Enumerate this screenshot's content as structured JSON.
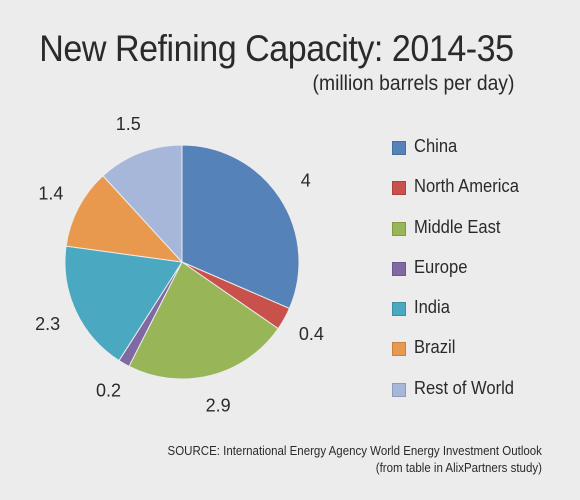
{
  "chart_data": {
    "type": "pie",
    "title": "New Refining Capacity: 2014-35",
    "subtitle": "(million barrels per day)",
    "slices": [
      {
        "label": "China",
        "value": 4,
        "value_label": "4",
        "color": "#5582b8"
      },
      {
        "label": "North America",
        "value": 0.4,
        "value_label": "0.4",
        "color": "#c9514c"
      },
      {
        "label": "Middle East",
        "value": 2.9,
        "value_label": "2.9",
        "color": "#98b558"
      },
      {
        "label": "Europe",
        "value": 0.2,
        "value_label": "0.2",
        "color": "#8068a2"
      },
      {
        "label": "India",
        "value": 2.3,
        "value_label": "2.3",
        "color": "#4aa8c1"
      },
      {
        "label": "Brazil",
        "value": 1.4,
        "value_label": "1.4",
        "color": "#e8994d"
      },
      {
        "label": "Rest of World",
        "value": 1.5,
        "value_label": "1.5",
        "color": "#a6b7d9"
      }
    ],
    "start_direction": "12 o'clock",
    "direction": "clockwise",
    "legend_position": "right"
  },
  "source": {
    "line1": "SOURCE: International Energy Agency World Energy Investment Outlook",
    "line2": "(from table in AlixPartners study)"
  }
}
